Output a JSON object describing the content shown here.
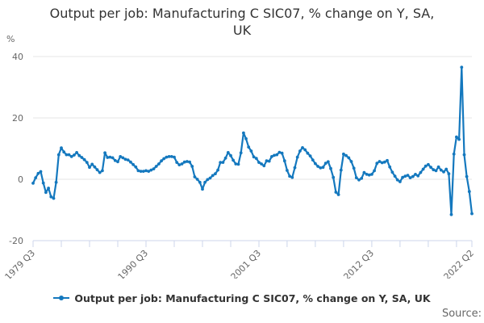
{
  "title": "Output per job: Manufacturing C SIC07, % change on Y, SA, UK",
  "title_lines": [
    "Output per job: Manufacturing C SIC07, % change on Y, SA,",
    "UK"
  ],
  "y_axis": {
    "unit_label": "%",
    "tick_values": [
      40,
      20,
      0,
      -20
    ]
  },
  "x_axis": {
    "tick_labels": [
      "1979 Q3",
      "1990 Q3",
      "2001 Q3",
      "2012 Q3",
      "2022 Q2"
    ]
  },
  "legend": {
    "label": "Output per job: Manufacturing C SIC07, % change on Y, SA, UK"
  },
  "source_label": "Source:",
  "colors": {
    "line": "#1478be",
    "grid": "#e6e6e6",
    "axis": "#ccd6eb",
    "tick_label": "#666666",
    "title": "#333333",
    "legend_text": "#333333",
    "source_text": "#666666",
    "background": "#ffffff"
  },
  "chart_data": {
    "type": "line",
    "title": "Output per job: Manufacturing C SIC07, % change on Y, SA, UK",
    "xlabel": "",
    "ylabel": "%",
    "ylim": [
      -20,
      40
    ],
    "y_ticks": [
      40,
      20,
      0,
      -20
    ],
    "grid": true,
    "legend_position": "bottom",
    "frequency": "quarterly",
    "x_start": "1979 Q3",
    "x_end": "2022 Q2",
    "n_points": 172,
    "labeled_tick_quarter_indices": [
      0,
      44,
      88,
      132,
      171
    ],
    "labeled_tick_labels": [
      "1979 Q3",
      "1990 Q3",
      "2001 Q3",
      "2012 Q3",
      "2022 Q2"
    ],
    "minor_tick_quarter_indices": [
      0,
      11,
      22,
      33,
      44,
      55,
      66,
      77,
      88,
      99,
      110,
      121,
      132,
      143,
      154,
      165,
      171
    ],
    "series": [
      {
        "name": "Output per job: Manufacturing C SIC07, % change on Y, SA, UK",
        "values": [
          -1.3,
          0.5,
          1.9,
          2.5,
          -1.2,
          -4.3,
          -2.9,
          -5.7,
          -6.2,
          -1.0,
          8.0,
          10.2,
          8.9,
          8.0,
          8.0,
          7.4,
          7.9,
          8.7,
          7.7,
          7.1,
          6.4,
          5.5,
          3.9,
          4.9,
          4.0,
          3.1,
          2.2,
          2.8,
          8.6,
          7.1,
          7.2,
          7.0,
          6.1,
          5.7,
          7.4,
          7.0,
          6.5,
          6.3,
          5.6,
          4.8,
          4.0,
          2.8,
          2.6,
          2.6,
          2.8,
          2.6,
          3.0,
          3.4,
          4.2,
          5.0,
          6.0,
          6.7,
          7.2,
          7.4,
          7.4,
          7.2,
          5.5,
          4.7,
          5.0,
          5.6,
          5.8,
          5.6,
          4.2,
          0.8,
          0.0,
          -1.0,
          -3.2,
          -1.0,
          -0.1,
          0.4,
          1.2,
          1.8,
          3.0,
          5.5,
          5.5,
          6.9,
          8.7,
          7.7,
          6.2,
          5.0,
          4.9,
          8.6,
          15.1,
          13.2,
          10.5,
          9.2,
          7.3,
          6.8,
          5.5,
          5.0,
          4.4,
          6.0,
          5.9,
          7.4,
          7.8,
          8.0,
          8.8,
          8.5,
          6.0,
          2.9,
          1.0,
          0.6,
          3.8,
          7.2,
          9.2,
          10.3,
          9.6,
          8.5,
          7.6,
          6.3,
          5.1,
          4.2,
          3.7,
          3.9,
          5.2,
          5.7,
          3.5,
          0.6,
          -4.2,
          -5.0,
          3.0,
          8.2,
          7.7,
          7.0,
          5.8,
          3.6,
          0.5,
          -0.2,
          0.3,
          2.2,
          1.6,
          1.4,
          1.6,
          2.8,
          5.2,
          5.8,
          5.4,
          5.6,
          6.1,
          4.0,
          2.3,
          1.0,
          -0.2,
          -0.8,
          0.6,
          1.0,
          1.3,
          0.5,
          0.9,
          1.6,
          1.1,
          2.2,
          3.3,
          4.3,
          4.8,
          3.9,
          3.1,
          2.8,
          4.0,
          3.0,
          2.4,
          3.3,
          1.8,
          -11.5,
          8.2,
          13.8,
          13.0,
          36.5,
          8.0,
          0.9,
          -4.0,
          -11.2
        ]
      }
    ]
  }
}
